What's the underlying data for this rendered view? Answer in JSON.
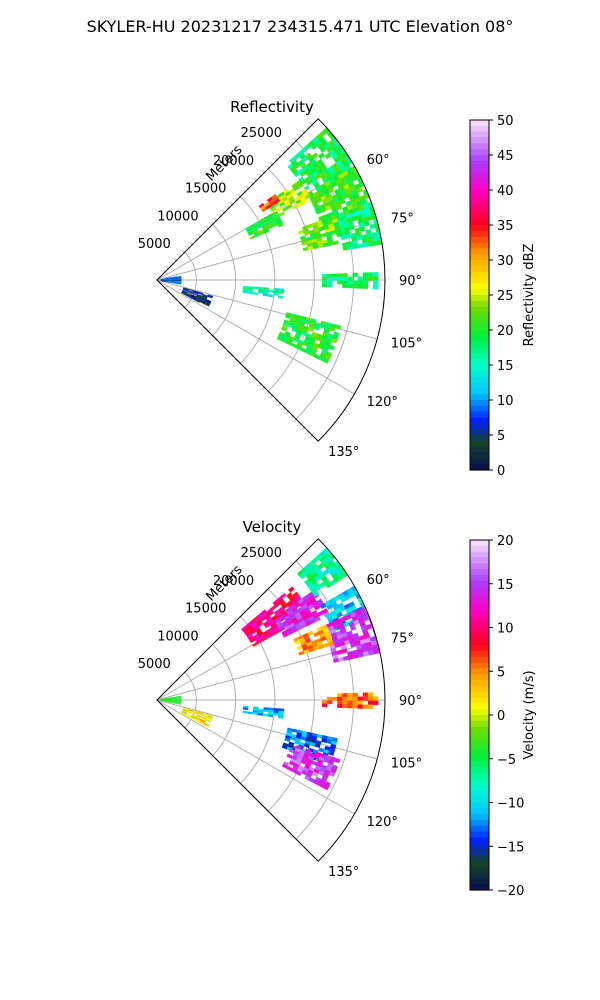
{
  "suptitle": "SKYLER-HU  20231217  234315.471 UTC Elevation 08°",
  "radial_unit_label": "Meters",
  "chart_data": [
    {
      "type": "polar-ppi",
      "title": "Reflectivity",
      "colorbar_label": "Reflectivity dBZ",
      "colorbar_range": [
        0,
        50
      ],
      "colorbar_ticks": [
        "0",
        "5",
        "10",
        "15",
        "20",
        "25",
        "30",
        "35",
        "40",
        "45",
        "50"
      ],
      "angular_range_deg": [
        45,
        135
      ],
      "angular_ticks": [
        "60°",
        "75°",
        "90°",
        "105°",
        "120°",
        "135°"
      ],
      "radial_range_m": [
        0,
        29000
      ],
      "radial_ticks": [
        "5000",
        "10000",
        "15000",
        "20000",
        "25000"
      ],
      "echoes": [
        {
          "az": [
            48,
            62
          ],
          "r": [
            22000,
            29000
          ],
          "value": 19
        },
        {
          "az": [
            60,
            72
          ],
          "r": [
            22000,
            29000
          ],
          "value": 21
        },
        {
          "az": [
            70,
            80
          ],
          "r": [
            24000,
            29000
          ],
          "value": 18
        },
        {
          "az": [
            55,
            62
          ],
          "r": [
            17000,
            22000
          ],
          "value": 24
        },
        {
          "az": [
            54,
            57
          ],
          "r": [
            16000,
            18000
          ],
          "value": 33
        },
        {
          "az": [
            60,
            66
          ],
          "r": [
            13000,
            17000
          ],
          "value": 20
        },
        {
          "az": [
            70,
            78
          ],
          "r": [
            19000,
            24000
          ],
          "value": 22
        },
        {
          "az": [
            88,
            92
          ],
          "r": [
            21000,
            28000
          ],
          "value": 18
        },
        {
          "az": [
            94,
            98
          ],
          "r": [
            11000,
            16000
          ],
          "value": 15
        },
        {
          "az": [
            104,
            116
          ],
          "r": [
            17000,
            24000
          ],
          "value": 20
        },
        {
          "az": [
            80,
            100
          ],
          "r": [
            500,
            3000
          ],
          "value": 8
        },
        {
          "az": [
            106,
            118
          ],
          "r": [
            3500,
            7000
          ],
          "value": 4
        }
      ]
    },
    {
      "type": "polar-ppi",
      "title": "Velocity",
      "colorbar_label": "Velocity (m/s)",
      "colorbar_range": [
        -20,
        20
      ],
      "colorbar_ticks": [
        "−20",
        "−15",
        "−10",
        "−5",
        "0",
        "5",
        "10",
        "15",
        "20"
      ],
      "angular_range_deg": [
        45,
        135
      ],
      "angular_ticks": [
        "60°",
        "75°",
        "90°",
        "105°",
        "120°",
        "135°"
      ],
      "radial_range_m": [
        0,
        29000
      ],
      "radial_ticks": [
        "5000",
        "10000",
        "15000",
        "20000",
        "25000"
      ],
      "echoes": [
        {
          "az": [
            50,
            60
          ],
          "r": [
            14000,
            22000
          ],
          "value": 10
        },
        {
          "az": [
            55,
            63
          ],
          "r": [
            18000,
            24000
          ],
          "value": 14
        },
        {
          "az": [
            48,
            56
          ],
          "r": [
            24000,
            29000
          ],
          "value": -7
        },
        {
          "az": [
            60,
            68
          ],
          "r": [
            24000,
            29000
          ],
          "value": -11
        },
        {
          "az": [
            66,
            78
          ],
          "r": [
            23000,
            29000
          ],
          "value": 15
        },
        {
          "az": [
            66,
            72
          ],
          "r": [
            19000,
            23000
          ],
          "value": 4
        },
        {
          "az": [
            88,
            92
          ],
          "r": [
            21000,
            28000
          ],
          "value": 6
        },
        {
          "az": [
            94,
            98
          ],
          "r": [
            11000,
            16000
          ],
          "value": -11
        },
        {
          "az": [
            102,
            110
          ],
          "r": [
            17000,
            23000
          ],
          "value": -13
        },
        {
          "az": [
            108,
            117
          ],
          "r": [
            18000,
            24000
          ],
          "value": 15
        },
        {
          "az": [
            80,
            100
          ],
          "r": [
            500,
            3000
          ],
          "value": -4
        },
        {
          "az": [
            106,
            118
          ],
          "r": [
            3500,
            7000
          ],
          "value": 2
        }
      ]
    }
  ]
}
